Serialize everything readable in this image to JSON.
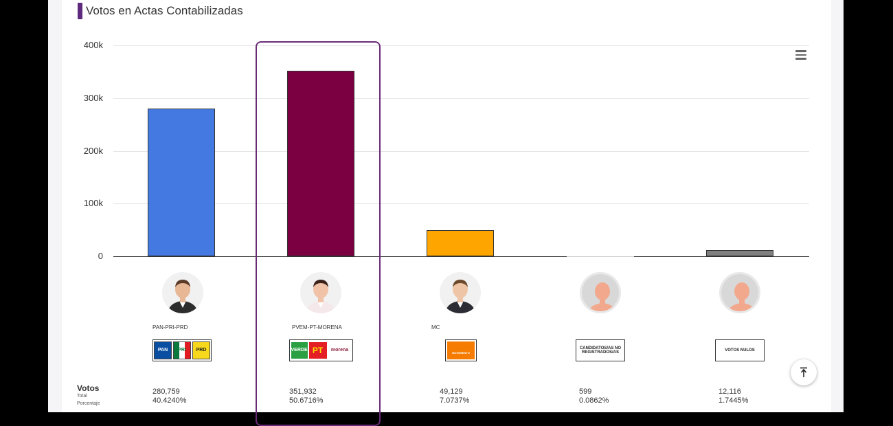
{
  "chart_data": {
    "type": "bar",
    "title": "Votos en Actas Contabilizadas",
    "categories": [
      "PAN-PRI-PRD",
      "PVEM-PT-MORENA",
      "MC",
      "CANDIDATOS/AS NO REGISTRADOS/AS",
      "VOTOS NULOS"
    ],
    "values": [
      280759,
      351932,
      49129,
      599,
      12116
    ],
    "ylim": [
      0,
      400000
    ],
    "yticks": [
      "0",
      "100k",
      "200k",
      "300k",
      "400k"
    ],
    "grid": true,
    "highlighted": "PVEM-PT-MORENA",
    "colors": [
      "#4479e1",
      "#7b0041",
      "#ffa500",
      "#cccccc",
      "#808080"
    ]
  },
  "candidates": [
    {
      "name": "PAN-PRI-PRD",
      "total": "280,759",
      "percent": "40.4240%",
      "logo": [
        "PAN",
        "PRI",
        "PRD"
      ]
    },
    {
      "name": "PVEM-PT-MORENA",
      "total": "351,932",
      "percent": "50.6716%",
      "logo": [
        "VERDE",
        "PT",
        "morena"
      ]
    },
    {
      "name": "MC",
      "total": "49,129",
      "percent": "7.0737%",
      "logo": [
        "MOVIMIENTO CIUDADANO"
      ]
    },
    {
      "name": "",
      "total": "599",
      "percent": "0.0862%",
      "logo": [
        "CANDIDATOS/AS NO REGISTRADOS/AS"
      ]
    },
    {
      "name": "",
      "total": "12,116",
      "percent": "1.7445%",
      "logo": [
        "VOTOS NULOS"
      ]
    }
  ],
  "legend": {
    "votos": "Votos",
    "total": "Total",
    "porcentaje": "Porcentaje"
  },
  "icons": {
    "menu": "hamburger-menu-icon",
    "scroll_top": "arrow-up-to-line-icon"
  }
}
